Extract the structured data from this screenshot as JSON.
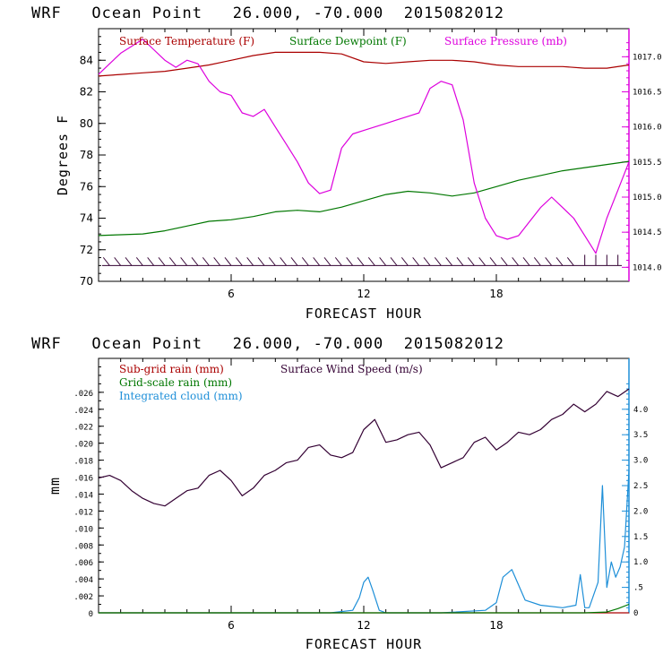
{
  "colors": {
    "temperature": "#aa0000",
    "dewpoint": "#007700",
    "pressure": "#dd00dd",
    "wind": "#330033",
    "subgrid_rain": "#aa0000",
    "gridscale_rain": "#007700",
    "cloud": "#1e8fd8",
    "axis": "#000000",
    "right_axis_top": "#dd00dd",
    "right_axis_bottom": "#1e8fd8"
  },
  "chart_data": [
    {
      "type": "line",
      "title": "WRF   Ocean Point   26.000, -70.000  2015082012",
      "xlabel": "FORECAST HOUR",
      "ylabel": "Degrees F",
      "xlim": [
        0,
        24
      ],
      "ylim": [
        70,
        86
      ],
      "xticks": [
        "6",
        "12",
        "18"
      ],
      "yticks": [
        "70",
        "72",
        "74",
        "76",
        "78",
        "80",
        "82",
        "84"
      ],
      "y2label": "",
      "y2lim": [
        1013.8,
        1017.4
      ],
      "y2ticks": [
        "1014.0",
        "1014.5",
        "1015.0",
        "1015.5",
        "1016.0",
        "1016.5",
        "1017.0"
      ],
      "legend": [
        "Surface Temperature (F)",
        "Surface Dewpoint (F)",
        "Surface Pressure (mb)"
      ],
      "series": [
        {
          "name": "Surface Temperature (F)",
          "axis": "left",
          "x": [
            0,
            1,
            2,
            3,
            4,
            5,
            6,
            7,
            8,
            9,
            10,
            11,
            12,
            13,
            14,
            15,
            16,
            17,
            18,
            19,
            20,
            21,
            22,
            23,
            24
          ],
          "values": [
            83.0,
            83.1,
            83.2,
            83.3,
            83.5,
            83.7,
            84.0,
            84.3,
            84.5,
            84.5,
            84.5,
            84.4,
            83.9,
            83.8,
            83.9,
            84.0,
            84.0,
            83.9,
            83.7,
            83.6,
            83.6,
            83.6,
            83.5,
            83.5,
            83.7
          ]
        },
        {
          "name": "Surface Dewpoint (F)",
          "axis": "left",
          "x": [
            0,
            1,
            2,
            3,
            4,
            5,
            6,
            7,
            8,
            9,
            10,
            11,
            12,
            13,
            14,
            15,
            16,
            17,
            18,
            19,
            20,
            21,
            22,
            23,
            24
          ],
          "values": [
            72.9,
            72.95,
            73.0,
            73.2,
            73.5,
            73.8,
            73.9,
            74.1,
            74.4,
            74.5,
            74.4,
            74.7,
            75.1,
            75.5,
            75.7,
            75.6,
            75.4,
            75.6,
            76.0,
            76.4,
            76.7,
            77.0,
            77.2,
            77.4,
            77.6
          ]
        },
        {
          "name": "Surface Pressure (mb)",
          "axis": "right",
          "x": [
            0,
            0.5,
            1,
            1.5,
            2,
            2.5,
            3,
            3.5,
            4,
            4.5,
            5,
            5.5,
            6,
            6.5,
            7,
            7.5,
            8,
            8.5,
            9,
            9.5,
            10,
            10.5,
            11,
            11.5,
            12,
            12.5,
            13,
            13.5,
            14,
            14.5,
            15,
            15.5,
            16,
            16.5,
            17,
            17.5,
            18,
            18.5,
            19,
            19.5,
            20,
            20.5,
            21,
            21.5,
            22,
            22.5,
            23,
            23.5,
            24
          ],
          "values": [
            1016.75,
            1016.9,
            1017.05,
            1017.15,
            1017.25,
            1017.1,
            1016.95,
            1016.85,
            1016.95,
            1016.9,
            1016.65,
            1016.5,
            1016.45,
            1016.2,
            1016.15,
            1016.25,
            1016.0,
            1015.75,
            1015.5,
            1015.2,
            1015.05,
            1015.1,
            1015.7,
            1015.9,
            1015.95,
            1016.0,
            1016.05,
            1016.1,
            1016.15,
            1016.2,
            1016.55,
            1016.65,
            1016.6,
            1016.1,
            1015.2,
            1014.7,
            1014.45,
            1014.4,
            1014.45,
            1014.65,
            1014.85,
            1015.0,
            1014.85,
            1014.7,
            1014.45,
            1014.2,
            1014.7,
            1015.1,
            1015.5
          ]
        }
      ],
      "wind_barbs": "present along y=71"
    },
    {
      "type": "line",
      "title": "WRF   Ocean Point   26.000, -70.000  2015082012",
      "xlabel": "FORECAST HOUR",
      "ylabel": "mm",
      "xlim": [
        0,
        24
      ],
      "ylim": [
        0,
        0.03
      ],
      "xticks": [
        "6",
        "12",
        "18"
      ],
      "yticks": [
        "0",
        ".002",
        ".004",
        ".006",
        ".008",
        ".010",
        ".012",
        ".014",
        ".016",
        ".018",
        ".020",
        ".022",
        ".024",
        ".026"
      ],
      "y2lim": [
        0,
        5.0
      ],
      "y2ticks": [
        "0",
        ".5",
        "1.0",
        "1.5",
        "2.0",
        "2.5",
        "3.0",
        "3.5",
        "4.0"
      ],
      "legend": [
        "Sub-grid rain (mm)",
        "Surface Wind Speed (m/s)",
        "Grid-scale rain (mm)",
        "Integrated cloud (mm)"
      ],
      "series": [
        {
          "name": "Surface Wind Speed (m/s)",
          "axis": "right",
          "x": [
            0,
            0.5,
            1,
            1.5,
            2,
            2.5,
            3,
            3.5,
            4,
            4.5,
            5,
            5.5,
            6,
            6.5,
            7,
            7.5,
            8,
            8.5,
            9,
            9.5,
            10,
            10.5,
            11,
            11.5,
            12,
            12.5,
            13,
            13.5,
            14,
            14.5,
            15,
            15.5,
            16,
            16.5,
            17,
            17.5,
            18,
            18.5,
            19,
            19.5,
            20,
            20.5,
            21,
            21.5,
            22,
            22.5,
            23,
            23.5,
            24
          ],
          "values": [
            2.65,
            2.7,
            2.6,
            2.4,
            2.25,
            2.15,
            2.1,
            2.25,
            2.4,
            2.45,
            2.7,
            2.8,
            2.6,
            2.3,
            2.45,
            2.7,
            2.8,
            2.95,
            3.0,
            3.25,
            3.3,
            3.1,
            3.05,
            3.15,
            3.6,
            3.8,
            3.35,
            3.4,
            3.5,
            3.55,
            3.3,
            2.85,
            2.95,
            3.05,
            3.35,
            3.45,
            3.2,
            3.35,
            3.55,
            3.5,
            3.6,
            3.8,
            3.9,
            4.1,
            3.95,
            4.1,
            4.35,
            4.25,
            4.4
          ]
        },
        {
          "name": "Integrated cloud (mm)",
          "axis": "right",
          "x": [
            0,
            10.5,
            11.5,
            11.8,
            12.0,
            12.2,
            12.4,
            12.7,
            13,
            15.5,
            17.5,
            18.0,
            18.3,
            18.7,
            19.0,
            19.3,
            20,
            21,
            21.6,
            21.8,
            22.0,
            22.2,
            22.6,
            22.8,
            23.0,
            23.2,
            23.4,
            23.6,
            23.8,
            24
          ],
          "values": [
            0,
            0,
            0.05,
            0.3,
            0.6,
            0.7,
            0.45,
            0.05,
            0,
            0,
            0.05,
            0.2,
            0.7,
            0.85,
            0.55,
            0.25,
            0.15,
            0.1,
            0.15,
            0.75,
            0.1,
            0.1,
            0.6,
            2.5,
            0.5,
            1.0,
            0.7,
            0.9,
            1.3,
            2.8
          ]
        },
        {
          "name": "Sub-grid rain (mm)",
          "axis": "left",
          "x": [
            0,
            24
          ],
          "values": [
            0,
            0
          ]
        },
        {
          "name": "Grid-scale rain (mm)",
          "axis": "left",
          "x": [
            0,
            22,
            23,
            23.5,
            24
          ],
          "values": [
            0,
            0,
            0.0001,
            0.0005,
            0.001
          ]
        }
      ]
    }
  ]
}
